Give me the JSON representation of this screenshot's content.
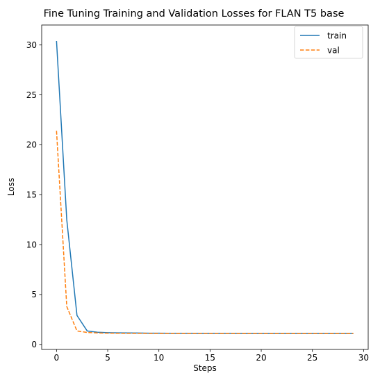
{
  "chart_data": {
    "type": "line",
    "title": "Fine Tuning Training and Validation Losses for FLAN T5 base",
    "xlabel": "Steps",
    "ylabel": "Loss",
    "xlim": [
      -1.45,
      30.45
    ],
    "ylim": [
      -0.5,
      32.0
    ],
    "xticks": [
      0,
      5,
      10,
      15,
      20,
      25,
      30
    ],
    "yticks": [
      0,
      5,
      10,
      15,
      20,
      25,
      30
    ],
    "grid": false,
    "legend_position": "top-right",
    "x": [
      0,
      1,
      2,
      3,
      4,
      5,
      6,
      7,
      8,
      9,
      10,
      11,
      12,
      13,
      14,
      15,
      16,
      17,
      18,
      19,
      20,
      21,
      22,
      23,
      24,
      25,
      26,
      27,
      28,
      29
    ],
    "series": [
      {
        "name": "train",
        "color": "#1f77b4",
        "style": "solid",
        "values": [
          30.4,
          12.5,
          2.9,
          1.35,
          1.22,
          1.18,
          1.16,
          1.15,
          1.14,
          1.13,
          1.13,
          1.12,
          1.12,
          1.12,
          1.11,
          1.11,
          1.11,
          1.11,
          1.1,
          1.1,
          1.1,
          1.1,
          1.1,
          1.1,
          1.1,
          1.1,
          1.1,
          1.1,
          1.1,
          1.1
        ]
      },
      {
        "name": "val",
        "color": "#ff7f0e",
        "style": "dashed",
        "values": [
          21.4,
          3.8,
          1.35,
          1.2,
          1.15,
          1.13,
          1.12,
          1.11,
          1.11,
          1.1,
          1.1,
          1.1,
          1.1,
          1.1,
          1.1,
          1.1,
          1.1,
          1.1,
          1.1,
          1.1,
          1.1,
          1.09,
          1.09,
          1.09,
          1.09,
          1.09,
          1.09,
          1.09,
          1.09,
          1.09
        ]
      }
    ]
  }
}
